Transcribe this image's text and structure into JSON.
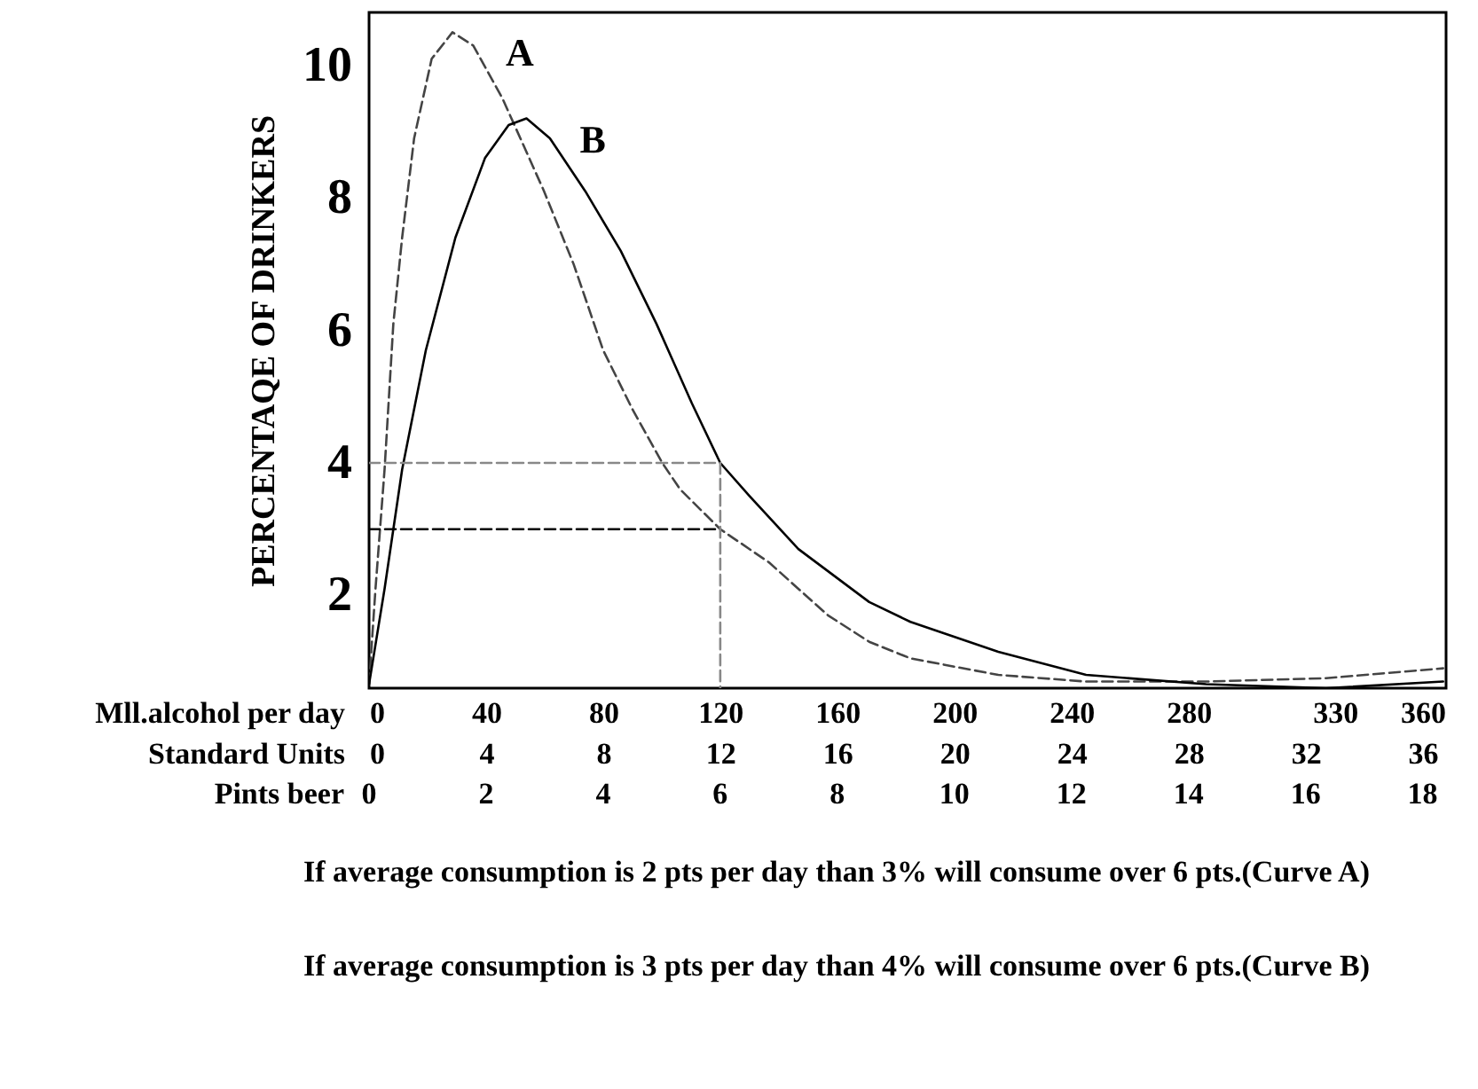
{
  "chart_data": {
    "type": "line",
    "ylabel": "PERCENTAQE OF DRINKERS",
    "xlabel": "Mll.alcohol per day",
    "x2label": "Standard Units",
    "xlim": [
      0,
      368
    ],
    "xticks": [
      0,
      40,
      80,
      120,
      160,
      200,
      240,
      280,
      330,
      360
    ],
    "x2lim": [
      0,
      36.8
    ],
    "x2ticks": [
      0,
      4,
      8,
      12,
      16,
      20,
      24,
      28,
      32,
      36
    ],
    "ylim": [
      0.6,
      10.8
    ],
    "yticks": [
      2,
      4,
      6,
      8,
      10
    ],
    "series": [
      {
        "name": "A",
        "color": "#444444",
        "line_style": "dashed",
        "x": [
          0,
          2.2,
          5.3,
          8.3,
          11.3,
          15.4,
          21.4,
          28.5,
          35.6,
          45.6,
          51.7,
          59.8,
          69.9,
          80,
          90.1,
          100.2,
          106.3,
          120,
          136.6,
          156.8,
          170.9,
          185,
          215,
          245,
          286,
          327,
          367
        ],
        "values": [
          0.66,
          2.1,
          3.9,
          6.1,
          7.4,
          8.9,
          10.1,
          10.5,
          10.3,
          9.5,
          8.9,
          8.1,
          7.0,
          5.7,
          4.8,
          4.0,
          3.6,
          3.0,
          2.5,
          1.7,
          1.3,
          1.05,
          0.8,
          0.7,
          0.7,
          0.75,
          0.9
        ]
      },
      {
        "name": "B",
        "color": "#000000",
        "line_style": "solid",
        "x": [
          0,
          5.3,
          11.3,
          19.4,
          29.5,
          39.6,
          47.7,
          53.8,
          61.8,
          73.9,
          86,
          98.2,
          110.3,
          120,
          130,
          146.7,
          170.9,
          185,
          215,
          245,
          286,
          327,
          367
        ],
        "values": [
          0.66,
          2.1,
          3.9,
          5.7,
          7.4,
          8.6,
          9.1,
          9.2,
          8.9,
          8.1,
          7.2,
          6.1,
          4.9,
          4.0,
          3.5,
          2.7,
          1.9,
          1.6,
          1.15,
          0.8,
          0.66,
          0.6,
          0.7
        ]
      },
      {
        "color": "#888888",
        "line_style": "dashed",
        "x": [
          0,
          120,
          120
        ],
        "values": [
          4,
          4,
          0.6
        ]
      },
      {
        "color": "#000000",
        "line_style": "dashed",
        "x": [
          0,
          120
        ],
        "values": [
          3,
          3
        ]
      }
    ],
    "annotations": [
      "Pints beer",
      "0",
      "2",
      "4",
      "6",
      "8",
      "10",
      "12",
      "14",
      "16",
      "18",
      "If average consumption is 2 pts per day than 3% will consume over 6 pts.(Curve A)",
      "If average consumption is 3 pts per day than 4% will consume over 6 pts.(Curve B)"
    ]
  }
}
